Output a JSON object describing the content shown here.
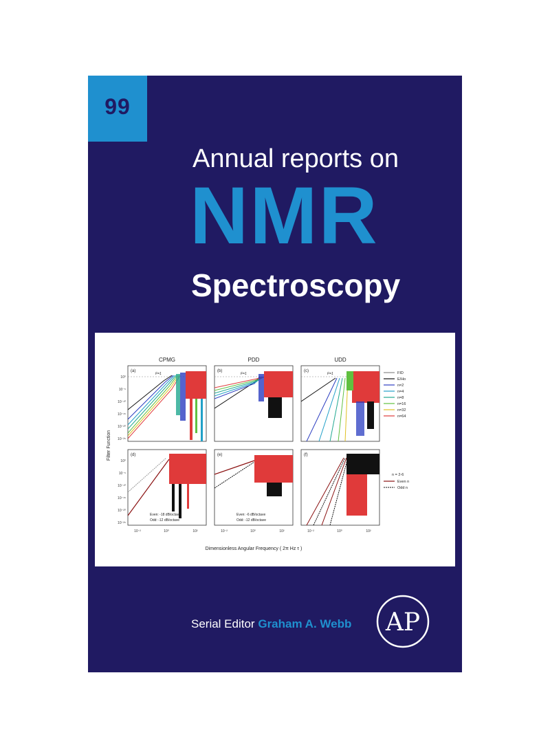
{
  "cover": {
    "volume": "99",
    "title_line1": "Annual reports on",
    "title_line2": "NMR",
    "title_line3": "Spectroscopy",
    "editor_label": "Serial Editor",
    "editor_name": "Graham A. Webb",
    "publisher_logo": "AP"
  },
  "colors": {
    "cover_bg": "#201a62",
    "accent_blue": "#1f90cf",
    "text_white": "#ffffff"
  },
  "figure": {
    "column_titles": [
      "CPMG",
      "PDD",
      "UDD"
    ],
    "panel_labels": [
      "(a)",
      "(b)",
      "(c)",
      "(d)",
      "(e)",
      "(f)"
    ],
    "y_axis_label": "Filter Function",
    "x_axis_label": "Dimensionless Angular Frequency ( 2π Hz τ )",
    "y_ticks": [
      "10⁰",
      "10⁻⁵",
      "10⁻¹⁰",
      "10⁻¹⁵",
      "10⁻²⁰",
      "10⁻²⁵"
    ],
    "x_ticks": [
      "10⁻²",
      "10⁰",
      "10²"
    ],
    "f1_label": "F=1",
    "legend_top": [
      "FID",
      "E/Ho",
      "n=2",
      "n=4",
      "n=8",
      "n=16",
      "n=32",
      "n=64"
    ],
    "legend_top_colors": [
      "#888888",
      "#111111",
      "#2a3cc0",
      "#21a0c8",
      "#20a890",
      "#60c040",
      "#e0c020",
      "#e03a3a"
    ],
    "legend_bottom": [
      "n = 2-6",
      "Even n",
      "Odd n"
    ],
    "annotation_d": [
      "Even: -18 dB/octave",
      "Odd: -12 dB/octave"
    ],
    "annotation_e": [
      "Even: -6 dB/octave",
      "Odd: -12 dB/octave"
    ]
  }
}
